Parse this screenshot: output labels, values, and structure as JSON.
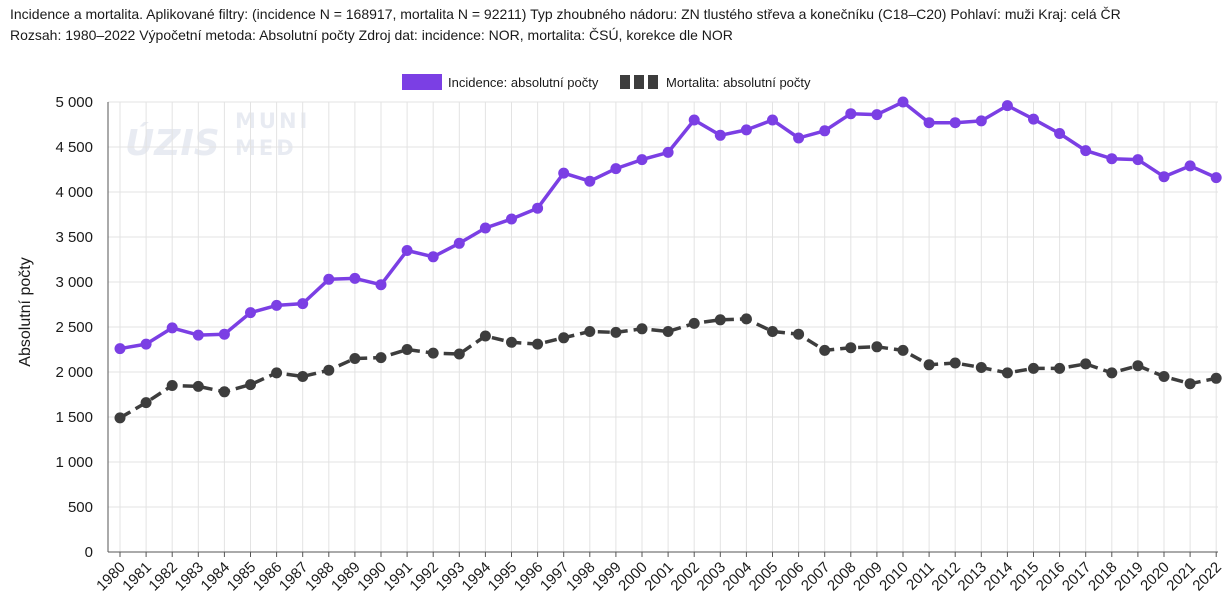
{
  "header": {
    "line1": "Incidence a mortalita. Aplikované filtry: (incidence N = 168917, mortalita N = 92211) Typ zhoubného nádoru: ZN tlustého střeva a konečníku (C18–C20) Pohlaví: muži Kraj: celá ČR",
    "line2": "Rozsah: 1980–2022 Výpočetní metoda: Absolutní počty Zdroj dat: incidence: NOR, mortalita: ČSÚ, korekce dle NOR"
  },
  "watermark": {
    "logo1": "ÚZIS",
    "logo2a": "MUNI",
    "logo2b": "MED"
  },
  "chart_data": {
    "type": "line",
    "title": "",
    "xlabel": "",
    "ylabel": "Absolutní počty",
    "ylim": [
      0,
      5000
    ],
    "yticks": [
      0,
      500,
      1000,
      1500,
      2000,
      2500,
      3000,
      3500,
      4000,
      4500,
      5000
    ],
    "ytick_labels": [
      "0",
      "500",
      "1 000",
      "1 500",
      "2 000",
      "2 500",
      "3 000",
      "3 500",
      "4 000",
      "4 500",
      "5 000"
    ],
    "grid": true,
    "legend_position": "top-center",
    "x": [
      "1980",
      "1981",
      "1982",
      "1983",
      "1984",
      "1985",
      "1986",
      "1987",
      "1988",
      "1989",
      "1990",
      "1991",
      "1992",
      "1993",
      "1994",
      "1995",
      "1996",
      "1997",
      "1998",
      "1999",
      "2000",
      "2001",
      "2002",
      "2003",
      "2004",
      "2005",
      "2006",
      "2007",
      "2008",
      "2009",
      "2010",
      "2011",
      "2012",
      "2013",
      "2014",
      "2015",
      "2016",
      "2017",
      "2018",
      "2019",
      "2020",
      "2021",
      "2022"
    ],
    "series": [
      {
        "name": "Incidence: absolutní počty",
        "color": "#7b3fe4",
        "style": "solid",
        "values": [
          2260,
          2310,
          2490,
          2410,
          2420,
          2660,
          2740,
          2760,
          3030,
          3040,
          2970,
          3350,
          3280,
          3430,
          3600,
          3700,
          3820,
          4210,
          4120,
          4260,
          4360,
          4440,
          4800,
          4630,
          4690,
          4800,
          4600,
          4680,
          4870,
          4860,
          5000,
          4770,
          4770,
          4790,
          4960,
          4810,
          4650,
          4460,
          4370,
          4360,
          4170,
          4290,
          4160
        ]
      },
      {
        "name": "Mortalita: absolutní počty",
        "color": "#3d3d3d",
        "style": "dashed",
        "values": [
          1490,
          1660,
          1850,
          1840,
          1780,
          1860,
          1990,
          1950,
          2020,
          2150,
          2160,
          2250,
          2210,
          2200,
          2400,
          2330,
          2310,
          2380,
          2450,
          2440,
          2480,
          2450,
          2540,
          2580,
          2590,
          2450,
          2420,
          2240,
          2270,
          2280,
          2240,
          2080,
          2100,
          2050,
          1990,
          2040,
          2040,
          2090,
          1990,
          2070,
          1950,
          1870,
          1930
        ]
      }
    ]
  }
}
